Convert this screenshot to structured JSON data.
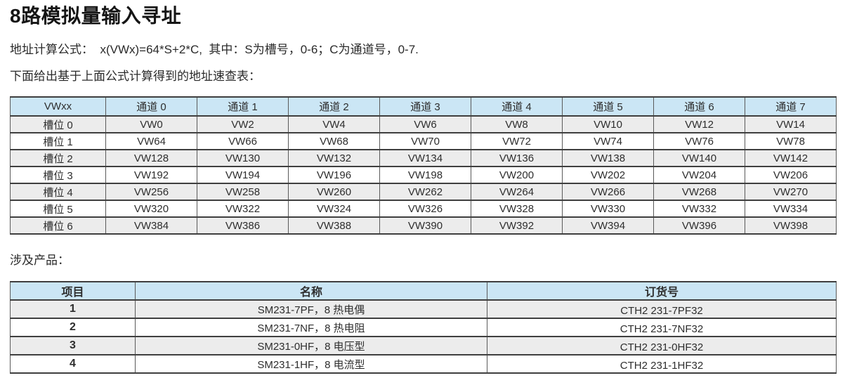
{
  "page": {
    "title": "8路模拟量输入寻址",
    "formula_line": "地址计算公式：  x(VWx)=64*S+2*C,  其中：S为槽号，0-6；C为通道号，0-7.",
    "table_intro": "下面给出基于上面公式计算得到的地址速查表：",
    "products_label": "涉及产品："
  },
  "address_table": {
    "headers": [
      "VWxx",
      "通道 0",
      "通道 1",
      "通道 2",
      "通道 3",
      "通道 4",
      "通道 5",
      "通道 6",
      "通道 7"
    ],
    "rows": [
      [
        "槽位 0",
        "VW0",
        "VW2",
        "VW4",
        "VW6",
        "VW8",
        "VW10",
        "VW12",
        "VW14"
      ],
      [
        "槽位 1",
        "VW64",
        "VW66",
        "VW68",
        "VW70",
        "VW72",
        "VW74",
        "VW76",
        "VW78"
      ],
      [
        "槽位 2",
        "VW128",
        "VW130",
        "VW132",
        "VW134",
        "VW136",
        "VW138",
        "VW140",
        "VW142"
      ],
      [
        "槽位 3",
        "VW192",
        "VW194",
        "VW196",
        "VW198",
        "VW200",
        "VW202",
        "VW204",
        "VW206"
      ],
      [
        "槽位 4",
        "VW256",
        "VW258",
        "VW260",
        "VW262",
        "VW264",
        "VW266",
        "VW268",
        "VW270"
      ],
      [
        "槽位 5",
        "VW320",
        "VW322",
        "VW324",
        "VW326",
        "VW328",
        "VW330",
        "VW332",
        "VW334"
      ],
      [
        "槽位 6",
        "VW384",
        "VW386",
        "VW388",
        "VW390",
        "VW392",
        "VW394",
        "VW396",
        "VW398"
      ]
    ]
  },
  "product_table": {
    "headers": [
      "项目",
      "名称",
      "订货号"
    ],
    "rows": [
      [
        "1",
        "SM231-7PF，8 热电偶",
        "CTH2 231-7PF32"
      ],
      [
        "2",
        "SM231-7NF，8 热电阻",
        "CTH2 231-7NF32"
      ],
      [
        "3",
        "SM231-0HF，8 电压型",
        "CTH2 231-0HF32"
      ],
      [
        "4",
        "SM231-1HF，8 电流型",
        "CTH2 231-1HF32"
      ]
    ]
  },
  "colors": {
    "header_bg": "#cbe6f5",
    "row_alt_bg": "#ececec",
    "border_dark": "#3f3f3f",
    "border_mid": "#5a5a5a",
    "text": "#2e2e2e"
  }
}
